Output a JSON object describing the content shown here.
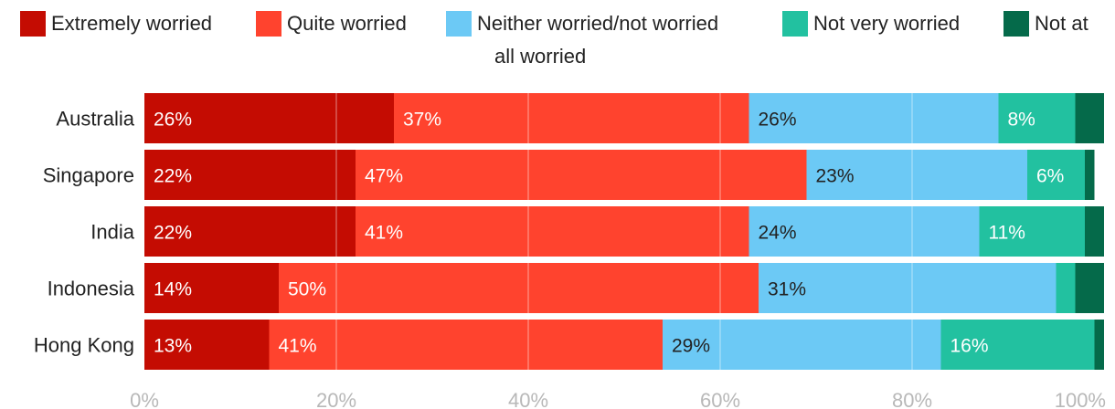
{
  "chart_data": {
    "type": "bar",
    "orientation": "horizontal",
    "stacked": true,
    "title": "",
    "xlabel": "",
    "ylabel": "",
    "xlim": [
      0,
      100
    ],
    "x_ticks": [
      "0%",
      "20%",
      "40%",
      "60%",
      "80%",
      "100%"
    ],
    "grid": true,
    "legend_position": "top",
    "categories": [
      "Australia",
      "Singapore",
      "India",
      "Indonesia",
      "Hong Kong"
    ],
    "series": [
      {
        "name": "Extremely worried",
        "color": "#c40c02",
        "values": [
          26,
          22,
          22,
          14,
          13
        ],
        "labels": [
          "26%",
          "22%",
          "22%",
          "14%",
          "13%"
        ],
        "label_color": "#ffffff"
      },
      {
        "name": "Quite worried",
        "color": "#ff432e",
        "values": [
          37,
          47,
          41,
          50,
          41
        ],
        "labels": [
          "37%",
          "47%",
          "41%",
          "50%",
          "41%"
        ],
        "label_color": "#ffffff"
      },
      {
        "name": "Neither worried/not worried",
        "color": "#6cc9f5",
        "values": [
          26,
          23,
          24,
          31,
          29
        ],
        "labels": [
          "26%",
          "23%",
          "24%",
          "31%",
          "29%"
        ],
        "label_color": "#222222"
      },
      {
        "name": "Not very worried",
        "color": "#22c1a0",
        "values": [
          8,
          6,
          11,
          2,
          16
        ],
        "labels": [
          "8%",
          "6%",
          "11%",
          "",
          "16%"
        ],
        "label_color": "#ffffff"
      },
      {
        "name": "Not at all worried",
        "color": "#056a4a",
        "values": [
          3,
          1,
          2,
          3,
          1
        ],
        "labels": [
          "",
          "",
          "",
          "",
          ""
        ],
        "label_color": "#ffffff"
      }
    ]
  }
}
